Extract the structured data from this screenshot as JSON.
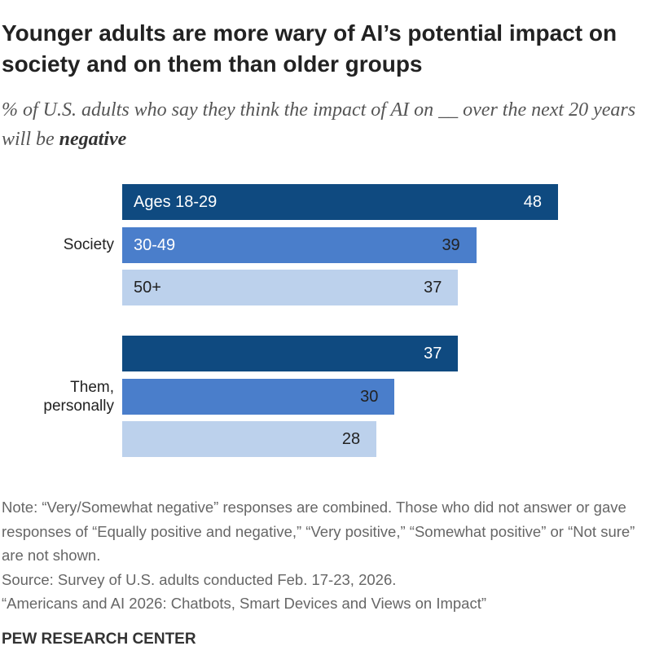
{
  "chart_data": {
    "type": "bar",
    "orientation": "horizontal",
    "title": "Younger adults are more wary of AI’s potential impact on society and on them than older groups",
    "subtitle": [
      "% of U.S. adults who say they think the impact of AI on __ over the next 20 years will be ",
      "negative"
    ],
    "categories": [
      "Society",
      "Them, personally"
    ],
    "series": [
      {
        "name": "Ages 18-29",
        "color": "#0f4a80",
        "values": [
          48,
          37
        ]
      },
      {
        "name": "30-49",
        "color": "#4a7ecb",
        "values": [
          39,
          30
        ]
      },
      {
        "name": "50+",
        "color": "#bcd1ec",
        "values": [
          37,
          28
        ]
      }
    ],
    "note": "Note: “Very/Somewhat negative” responses are combined. Those who did not answer or gave responses of “Equally positive and negative,” “Very positive,” “Somewhat positive” or “Not sure” are not shown.",
    "source": "Source: Survey of U.S. adults conducted Feb. 17-23, 2026.",
    "report": "“Americans and AI 2026: Chatbots, Smart Devices and Views on Impact”",
    "credit": "PEW RESEARCH CENTER"
  }
}
